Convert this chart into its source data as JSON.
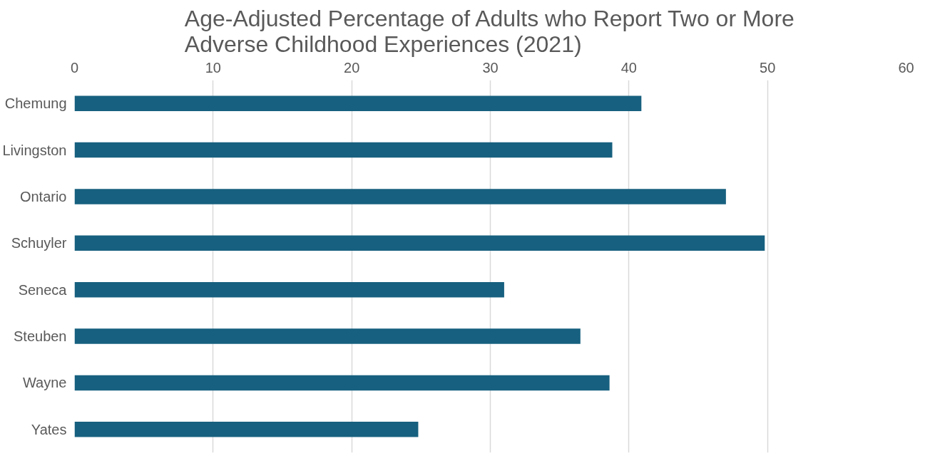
{
  "chart_data": {
    "type": "bar",
    "orientation": "horizontal",
    "title": "Age-Adjusted Percentage of Adults who Report Two or More\nAdverse Childhood Experiences (2021)",
    "categories": [
      "Chemung",
      "Livingston",
      "Ontario",
      "Schuyler",
      "Seneca",
      "Steuben",
      "Wayne",
      "Yates"
    ],
    "values": [
      40.9,
      38.8,
      47.0,
      49.8,
      31.0,
      36.5,
      38.6,
      24.8
    ],
    "color": "#17607f",
    "xlim": [
      0,
      60
    ],
    "xticks": [
      0,
      10,
      20,
      30,
      40,
      50,
      60
    ],
    "grid": "x"
  }
}
